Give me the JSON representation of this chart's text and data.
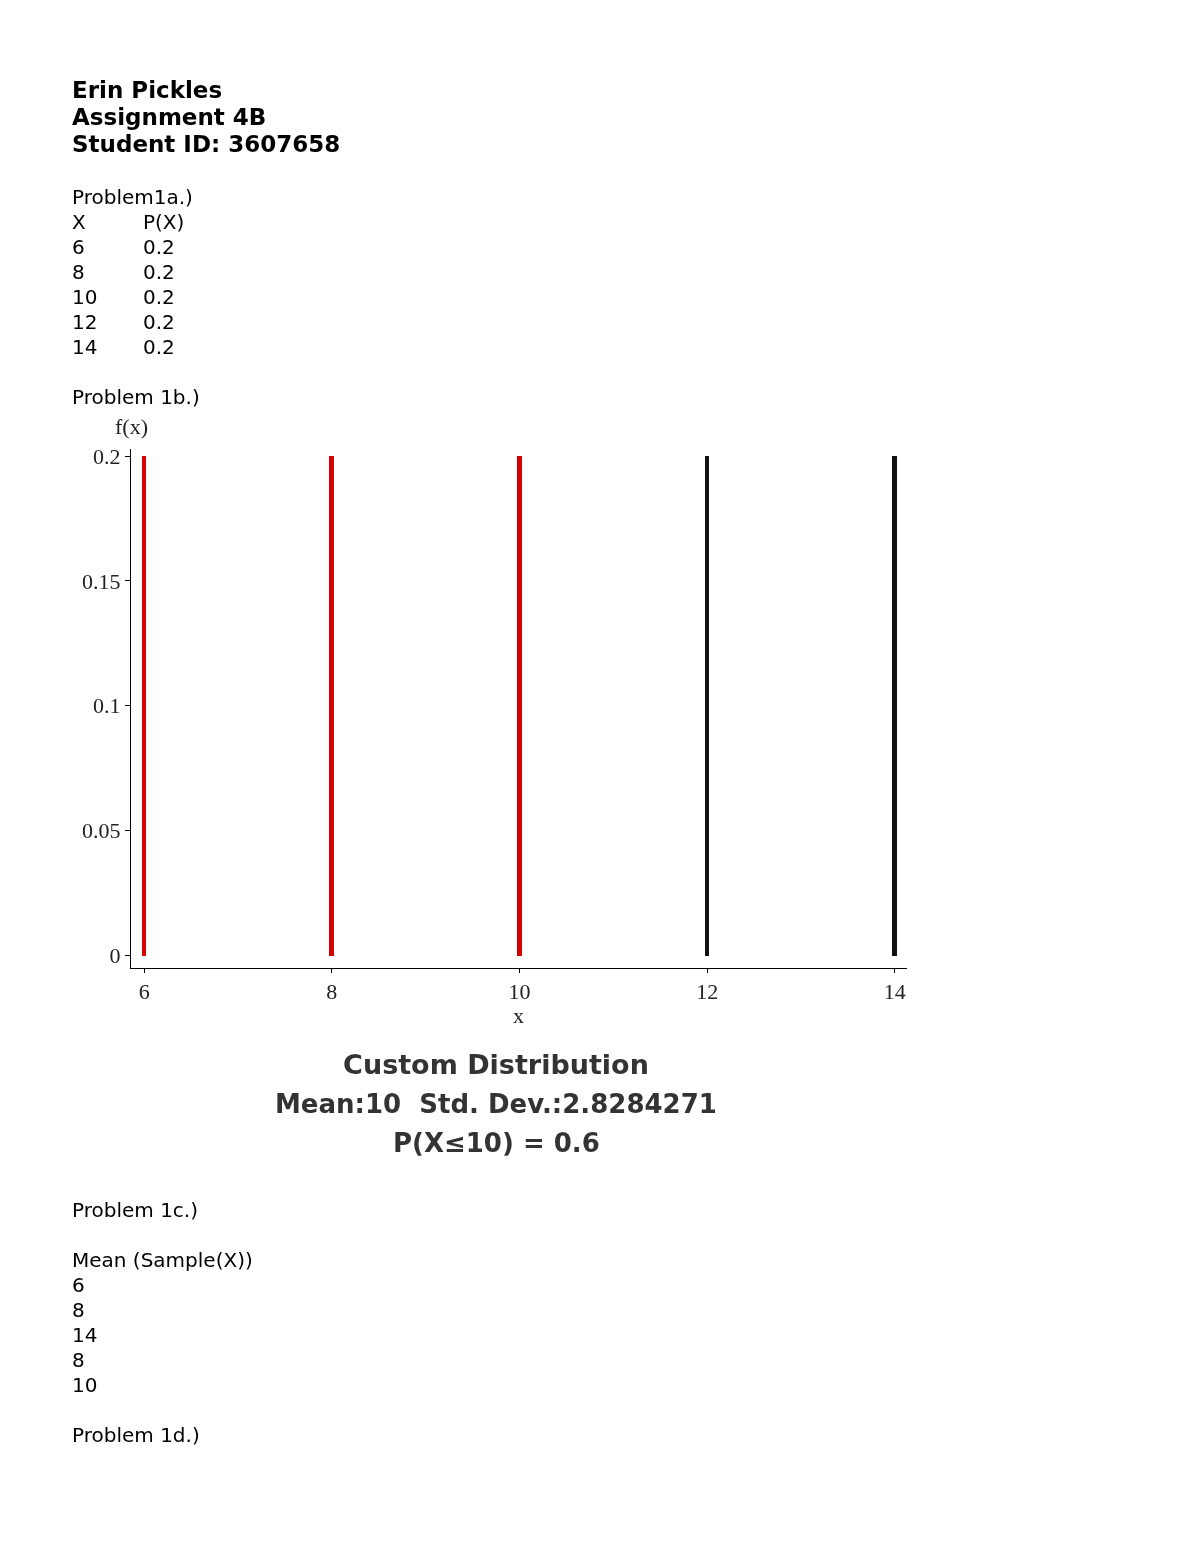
{
  "chart_data": {
    "type": "bar",
    "title": "Custom Distribution",
    "subtitle": "Mean:10  Std. Dev.:2.8284271\nP(X≤10) = 0.6",
    "xlabel": "x",
    "ylabel": "f(x)",
    "x": [
      6,
      8,
      10,
      12,
      14
    ],
    "values": [
      0.2,
      0.2,
      0.2,
      0.2,
      0.2
    ],
    "colors": [
      "#d40000",
      "#d40000",
      "#d40000",
      "#111111",
      "#111111"
    ],
    "xlim": [
      5.86,
      14.13
    ],
    "ylim": [
      -0.005,
      0.203
    ],
    "xticks": [
      6,
      8,
      10,
      12,
      14
    ],
    "yticks": [
      0,
      0.05,
      0.1,
      0.15,
      0.2
    ],
    "annotations": [
      "Erin Pickles",
      "Assignment 4B",
      "Student ID: 3607658",
      "Problem1a.)",
      "X",
      "P(X)",
      "6",
      "0.2",
      "8",
      "0.2",
      "10",
      "0.2",
      "12",
      "0.2",
      "14",
      "0.2",
      "Problem 1b.)",
      "Problem 1c.)",
      "Mean (Sample(X))",
      "6",
      "8",
      "14",
      "8",
      "10",
      "Problem 1d.)"
    ]
  }
}
